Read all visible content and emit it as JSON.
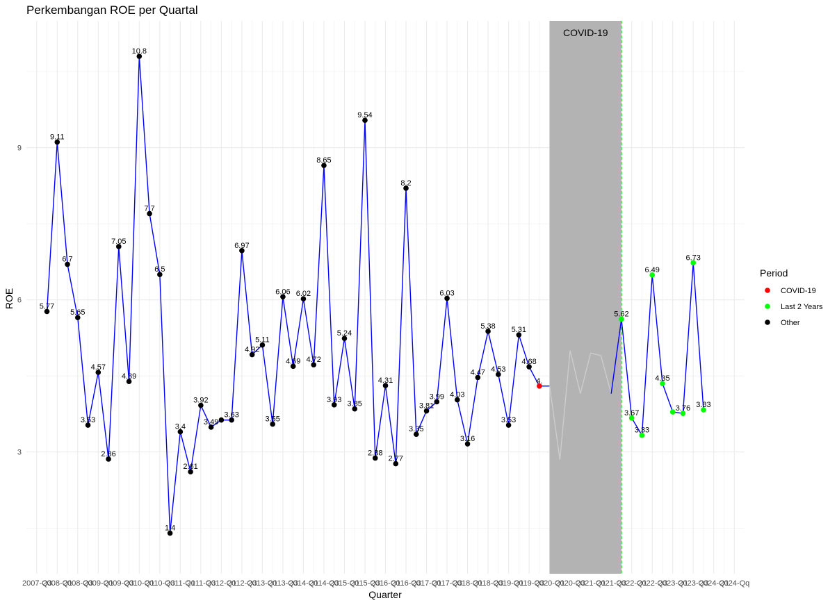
{
  "chart_data": {
    "type": "line",
    "title": "Perkembangan ROE per Quartal",
    "xlabel": "Quarter",
    "ylabel": "ROE",
    "ylim": [
      0.6,
      11.5
    ],
    "yticks": [
      3,
      6,
      9
    ],
    "grid": true,
    "legend": {
      "title": "Period",
      "placement": "right",
      "entries": [
        {
          "label": "COVID-19",
          "color": "#ff0000"
        },
        {
          "label": "Last 2 Years",
          "color": "#00ff00"
        },
        {
          "label": "Other",
          "color": "#000000"
        }
      ]
    },
    "line_color": "#0000ff",
    "covid_line_color": "#cccccc",
    "covid_band": {
      "label": "COVID-19",
      "color": "#b3b3b3",
      "from": 51,
      "to": 58
    },
    "divider_line": {
      "at": 58,
      "color": "#00ff00"
    },
    "x_tick_labels": [
      "2007-Q3",
      "2008-Q1",
      "2008-Q3",
      "2009-Q1",
      "2009-Q3",
      "2010-Q1",
      "2010-Q3",
      "2011-Q1",
      "2011-Q3",
      "2012-Q1",
      "2012-Q3",
      "2013-Q1",
      "2013-Q3",
      "2014-Q1",
      "2014-Q3",
      "2015-Q1",
      "2015-Q3",
      "2016-Q1",
      "2016-Q3",
      "2017-Q1",
      "2017-Q3",
      "2018-Q1",
      "2018-Q3",
      "2019-Q1",
      "2019-Q3",
      "2020-Q1",
      "2020-Q3",
      "2021-Q1",
      "2021-Q3",
      "2022-Q1",
      "2022-Q3",
      "2023-Q1",
      "2023-Q3",
      "2024-Q1",
      "2024-Qq"
    ],
    "x_tick_positions": [
      0.5,
      2.5,
      4.5,
      6.5,
      8.5,
      10.5,
      12.5,
      14.5,
      16.5,
      18.5,
      20.5,
      22.5,
      24.5,
      26.5,
      28.5,
      30.5,
      32.5,
      34.5,
      36.5,
      38.5,
      40.5,
      42.5,
      44.5,
      46.5,
      48.5,
      50.5,
      52.5,
      54.5,
      56.5,
      58.5,
      60.5,
      62.5,
      64.5,
      66.5,
      68.5
    ],
    "series": [
      {
        "x": 2,
        "y": 5.77,
        "label": "5.77",
        "period": "Other"
      },
      {
        "x": 3,
        "y": 9.11,
        "label": "9.11",
        "period": "Other"
      },
      {
        "x": 4,
        "y": 6.7,
        "label": "6.7",
        "period": "Other"
      },
      {
        "x": 5,
        "y": 5.65,
        "label": "5.65",
        "period": "Other"
      },
      {
        "x": 6,
        "y": 3.53,
        "label": "3.53",
        "period": "Other"
      },
      {
        "x": 7,
        "y": 4.57,
        "label": "4.57",
        "period": "Other"
      },
      {
        "x": 8,
        "y": 2.86,
        "label": "2.86",
        "period": "Other"
      },
      {
        "x": 9,
        "y": 7.05,
        "label": "7.05",
        "period": "Other"
      },
      {
        "x": 10,
        "y": 4.39,
        "label": "4.39",
        "period": "Other"
      },
      {
        "x": 11,
        "y": 10.8,
        "label": "10.8",
        "period": "Other"
      },
      {
        "x": 12,
        "y": 7.7,
        "label": "7.7",
        "period": "Other"
      },
      {
        "x": 13,
        "y": 6.5,
        "label": "6.5",
        "period": "Other"
      },
      {
        "x": 14,
        "y": 1.4,
        "label": "1.4",
        "period": "Other"
      },
      {
        "x": 15,
        "y": 3.4,
        "label": "3.4",
        "period": "Other"
      },
      {
        "x": 16,
        "y": 2.61,
        "label": "2.61",
        "period": "Other"
      },
      {
        "x": 17,
        "y": 3.92,
        "label": "3.92",
        "period": "Other"
      },
      {
        "x": 18,
        "y": 3.49,
        "label": "3.49",
        "period": "Other"
      },
      {
        "x": 19,
        "y": 3.63,
        "label": "",
        "period": "Other"
      },
      {
        "x": 20,
        "y": 3.63,
        "label": "3.63",
        "period": "Other"
      },
      {
        "x": 21,
        "y": 6.97,
        "label": "6.97",
        "period": "Other"
      },
      {
        "x": 22,
        "y": 4.92,
        "label": "4.92",
        "period": "Other"
      },
      {
        "x": 23,
        "y": 5.11,
        "label": "5.11",
        "period": "Other"
      },
      {
        "x": 24,
        "y": 3.55,
        "label": "3.55",
        "period": "Other"
      },
      {
        "x": 25,
        "y": 6.06,
        "label": "6.06",
        "period": "Other"
      },
      {
        "x": 26,
        "y": 4.69,
        "label": "4.69",
        "period": "Other"
      },
      {
        "x": 27,
        "y": 6.02,
        "label": "6.02",
        "period": "Other"
      },
      {
        "x": 28,
        "y": 4.72,
        "label": "4.72",
        "period": "Other"
      },
      {
        "x": 29,
        "y": 8.65,
        "label": "8.65",
        "period": "Other"
      },
      {
        "x": 30,
        "y": 3.93,
        "label": "3.93",
        "period": "Other"
      },
      {
        "x": 31,
        "y": 5.24,
        "label": "5.24",
        "period": "Other"
      },
      {
        "x": 32,
        "y": 3.85,
        "label": "3.85",
        "period": "Other"
      },
      {
        "x": 33,
        "y": 9.54,
        "label": "9.54",
        "period": "Other"
      },
      {
        "x": 34,
        "y": 2.88,
        "label": "2.88",
        "period": "Other"
      },
      {
        "x": 35,
        "y": 4.31,
        "label": "4.31",
        "period": "Other"
      },
      {
        "x": 36,
        "y": 2.77,
        "label": "2.77",
        "period": "Other"
      },
      {
        "x": 37,
        "y": 8.2,
        "label": "8.2",
        "period": "Other"
      },
      {
        "x": 38,
        "y": 3.35,
        "label": "3.35",
        "period": "Other"
      },
      {
        "x": 39,
        "y": 3.81,
        "label": "3.81",
        "period": "Other"
      },
      {
        "x": 40,
        "y": 3.99,
        "label": "3.99",
        "period": "Other"
      },
      {
        "x": 41,
        "y": 6.03,
        "label": "6.03",
        "period": "Other"
      },
      {
        "x": 42,
        "y": 4.03,
        "label": "4.03",
        "period": "Other"
      },
      {
        "x": 43,
        "y": 3.16,
        "label": "3.16",
        "period": "Other"
      },
      {
        "x": 44,
        "y": 4.47,
        "label": "4.47",
        "period": "Other"
      },
      {
        "x": 45,
        "y": 5.38,
        "label": "5.38",
        "period": "Other"
      },
      {
        "x": 46,
        "y": 4.53,
        "label": "4.53",
        "period": "Other"
      },
      {
        "x": 47,
        "y": 3.53,
        "label": "3.53",
        "period": "Other"
      },
      {
        "x": 48,
        "y": 5.31,
        "label": "5.31",
        "period": "Other"
      },
      {
        "x": 49,
        "y": 4.68,
        "label": "4.68",
        "period": "Other"
      },
      {
        "x": 50,
        "y": 4.3,
        "label": "4.",
        "period": "COVID-19"
      },
      {
        "x": 51,
        "y": 4.3,
        "label": "",
        "period": "COVID-19"
      },
      {
        "x": 52,
        "y": 2.85,
        "label": "",
        "period": "COVID-19"
      },
      {
        "x": 53,
        "y": 5.0,
        "label": "",
        "period": "COVID-19"
      },
      {
        "x": 54,
        "y": 4.15,
        "label": "",
        "period": "COVID-19"
      },
      {
        "x": 55,
        "y": 4.95,
        "label": "",
        "period": "COVID-19"
      },
      {
        "x": 56,
        "y": 4.9,
        "label": "",
        "period": "COVID-19"
      },
      {
        "x": 57,
        "y": 4.15,
        "label": "",
        "period": "COVID-19"
      },
      {
        "x": 58,
        "y": 5.62,
        "label": "5.62",
        "period": "Last 2 Years"
      },
      {
        "x": 59,
        "y": 3.67,
        "label": "3.67",
        "period": "Last 2 Years"
      },
      {
        "x": 60,
        "y": 3.33,
        "label": "3.33",
        "period": "Last 2 Years"
      },
      {
        "x": 61,
        "y": 6.49,
        "label": "6.49",
        "period": "Last 2 Years"
      },
      {
        "x": 62,
        "y": 4.35,
        "label": "4.35",
        "period": "Last 2 Years"
      },
      {
        "x": 63,
        "y": 3.79,
        "label": "",
        "period": "Last 2 Years"
      },
      {
        "x": 64,
        "y": 3.76,
        "label": "3.76",
        "period": "Last 2 Years"
      },
      {
        "x": 65,
        "y": 6.73,
        "label": "6.73",
        "period": "Last 2 Years"
      },
      {
        "x": 66,
        "y": 3.83,
        "label": "3.83",
        "period": "Last 2 Years"
      }
    ]
  }
}
